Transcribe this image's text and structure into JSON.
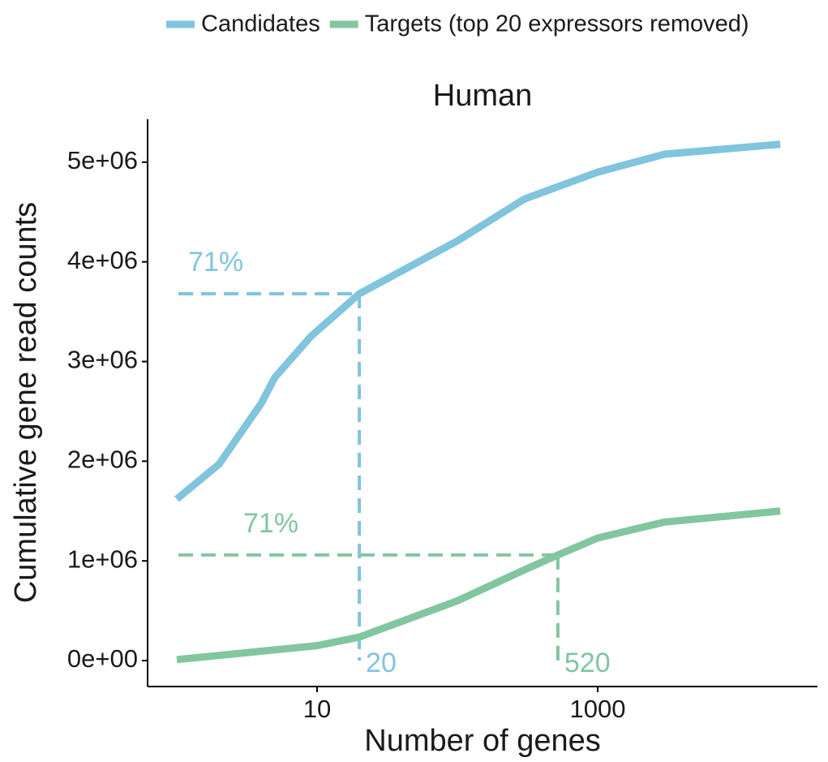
{
  "chart_data": {
    "type": "line",
    "title": "Human",
    "xlabel": "Number of genes",
    "ylabel": "Cumulative gene read counts",
    "xscale": "log",
    "xlim": [
      0.62,
      36800
    ],
    "xticks": [
      10,
      1000
    ],
    "ylim": [
      -260000,
      5430000
    ],
    "yticks": [
      {
        "value": 0,
        "label": "0e+00"
      },
      {
        "value": 1000000,
        "label": "1e+06"
      },
      {
        "value": 2000000,
        "label": "2e+06"
      },
      {
        "value": 3000000,
        "label": "3e+06"
      },
      {
        "value": 4000000,
        "label": "4e+06"
      },
      {
        "value": 5000000,
        "label": "5e+06"
      }
    ],
    "legend": "top",
    "series": [
      {
        "name": "Candidates",
        "color": "#80c4de",
        "x": [
          1,
          2,
          4,
          5,
          9,
          20,
          100,
          300,
          1000,
          3000,
          20000
        ],
        "values": [
          1620000,
          1970000,
          2580000,
          2840000,
          3250000,
          3680000,
          4210000,
          4630000,
          4900000,
          5080000,
          5180000
        ]
      },
      {
        "name": "Targets (top 20 expressors removed)",
        "color": "#82c6a0",
        "x": [
          1,
          10,
          20,
          100,
          300,
          520,
          1000,
          3000,
          20000
        ],
        "values": [
          10000,
          150000,
          236000,
          600000,
          910000,
          1060000,
          1230000,
          1390000,
          1500000
        ]
      }
    ],
    "guides": [
      {
        "x": 20,
        "y": 3680000,
        "label": "71%",
        "color": "#80c4de"
      },
      {
        "x": 520,
        "y": 1060000,
        "label": "71%",
        "color": "#82c6a0"
      }
    ]
  }
}
